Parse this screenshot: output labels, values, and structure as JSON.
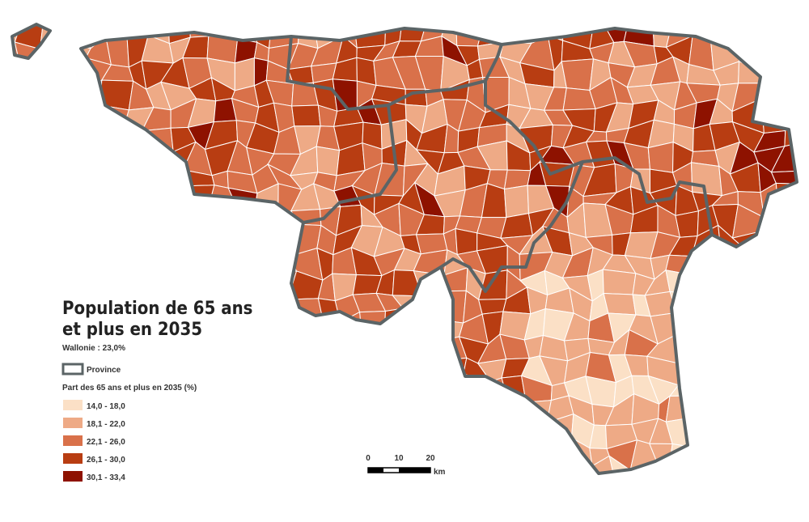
{
  "title_lines": [
    "Population de 65 ans",
    "et plus en 2035"
  ],
  "subtitle": "Wallonie :  23,0%",
  "province_label": "Province",
  "legend_title": "Part des 65 ans et plus en 2035 (%)",
  "classes": [
    {
      "label": "14,0 - 18,0",
      "color": "#fbe0c6"
    },
    {
      "label": "18,1 - 22,0",
      "color": "#eeaa86"
    },
    {
      "label": "22,1 - 26,0",
      "color": "#d9714a"
    },
    {
      "label": "26,1 - 30,0",
      "color": "#b83d12"
    },
    {
      "label": "30,1 - 33,4",
      "color": "#8e1200"
    }
  ],
  "scale_bar": {
    "ticks": [
      0,
      10,
      20
    ],
    "unit": "km"
  }
}
